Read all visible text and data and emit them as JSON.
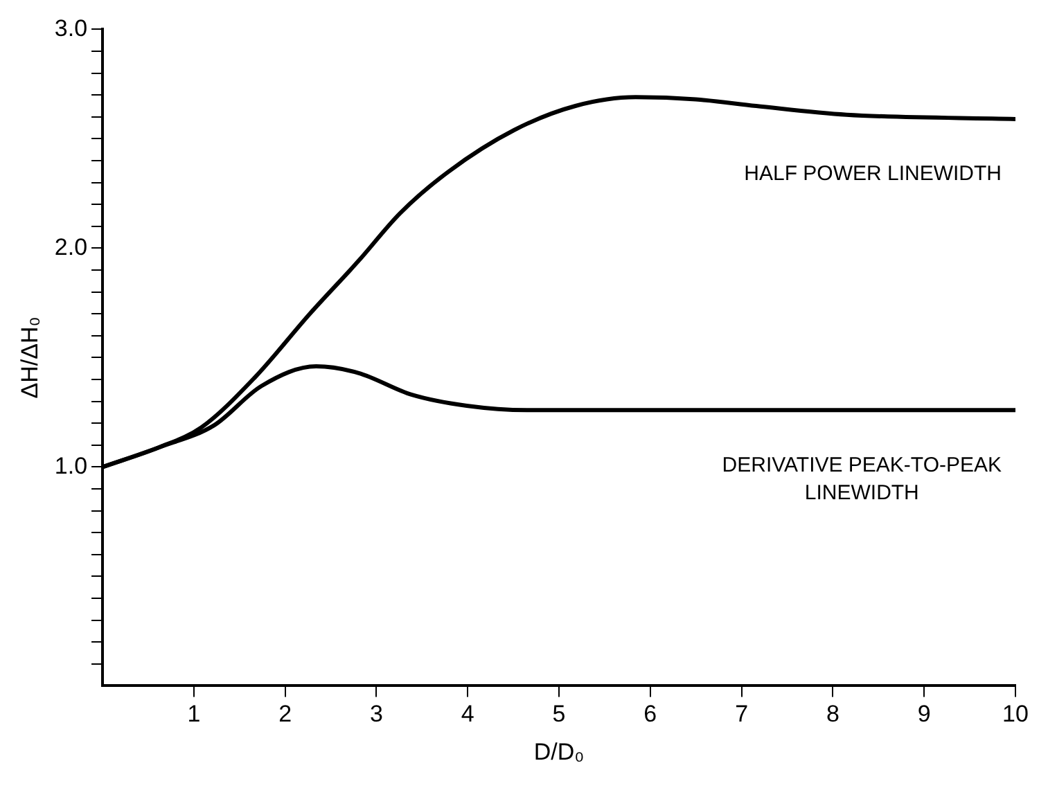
{
  "chart_data": {
    "type": "line",
    "xlabel": "D/D₀",
    "ylabel": "ΔH/ΔH₀",
    "xlim": [
      0,
      10
    ],
    "xticks": [
      1,
      2,
      3,
      4,
      5,
      6,
      7,
      8,
      9,
      10
    ],
    "ylim": [
      0,
      3
    ],
    "yticks": [
      {
        "value": 0.1,
        "label": null
      },
      {
        "value": 0.2,
        "label": null
      },
      {
        "value": 0.3,
        "label": null
      },
      {
        "value": 0.4,
        "label": null
      },
      {
        "value": 0.5,
        "label": null
      },
      {
        "value": 0.6,
        "label": null
      },
      {
        "value": 0.7,
        "label": null
      },
      {
        "value": 0.8,
        "label": null
      },
      {
        "value": 0.9,
        "label": null
      },
      {
        "value": 1,
        "label": "1.0"
      },
      {
        "value": 1.1,
        "label": null
      },
      {
        "value": 1.2,
        "label": null
      },
      {
        "value": 1.3,
        "label": null
      },
      {
        "value": 1.4,
        "label": null
      },
      {
        "value": 1.5,
        "label": null
      },
      {
        "value": 1.6,
        "label": null
      },
      {
        "value": 1.7,
        "label": null
      },
      {
        "value": 1.8,
        "label": null
      },
      {
        "value": 1.9,
        "label": null
      },
      {
        "value": 2,
        "label": "2.0"
      },
      {
        "value": 2.1,
        "label": null
      },
      {
        "value": 2.2,
        "label": null
      },
      {
        "value": 2.3,
        "label": null
      },
      {
        "value": 2.4,
        "label": null
      },
      {
        "value": 2.5,
        "label": null
      },
      {
        "value": 2.6,
        "label": null
      },
      {
        "value": 2.7,
        "label": null
      },
      {
        "value": 2.8,
        "label": null
      },
      {
        "value": 2.9,
        "label": null
      },
      {
        "value": 3,
        "label": "3.0"
      }
    ],
    "grid": false,
    "legend": false,
    "marker": "none",
    "line_style": "solid",
    "series": [
      {
        "name": "HALF POWER LINEWIDTH",
        "color": "#000000",
        "x": [
          0,
          0.62,
          1.08,
          1.67,
          2.27,
          2.8,
          3.26,
          3.79,
          4.51,
          5.18,
          5.84,
          6.5,
          7.16,
          8.15,
          10
        ],
        "values": [
          1.0,
          1.09,
          1.18,
          1.41,
          1.7,
          1.94,
          2.16,
          2.35,
          2.54,
          2.65,
          2.69,
          2.68,
          2.65,
          2.61,
          2.59
        ]
      },
      {
        "name": "DERIVATIVE PEAK-TO-PEAK LINEWIDTH",
        "color": "#000000",
        "x": [
          0,
          0.62,
          1.22,
          1.74,
          2.34,
          2.8,
          3.39,
          3.99,
          4.65,
          6.5,
          10
        ],
        "values": [
          1.0,
          1.09,
          1.19,
          1.37,
          1.46,
          1.43,
          1.33,
          1.28,
          1.26,
          1.26,
          1.26
        ]
      }
    ]
  }
}
